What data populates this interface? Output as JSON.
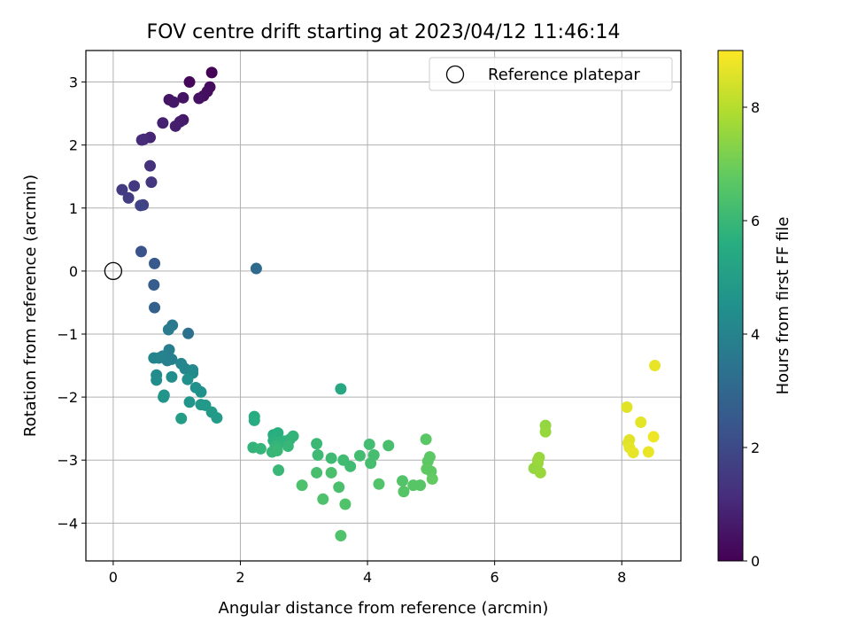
{
  "chart_data": {
    "type": "scatter",
    "title": "FOV centre drift starting at 2023/04/12 11:46:14",
    "xlabel": "Angular distance from reference (arcmin)",
    "ylabel": "Rotation from reference (arcmin)",
    "xlim": [
      -0.43,
      8.93
    ],
    "ylim": [
      -4.6,
      3.5
    ],
    "xticks": [
      "0",
      "2",
      "4",
      "6",
      "8"
    ],
    "yticks": [
      "−4",
      "−3",
      "−2",
      "−1",
      "0",
      "1",
      "2",
      "3"
    ],
    "grid": true,
    "legend": {
      "position": "top-right",
      "entries": [
        "Reference platepar"
      ]
    },
    "colorbar": {
      "label": "Hours from first FF file",
      "range": [
        0,
        9
      ],
      "ticks": [
        "0",
        "2",
        "4",
        "6",
        "8"
      ],
      "colormap": "viridis"
    },
    "reference_point": {
      "x": 0,
      "y": 0
    },
    "series": [
      {
        "points": [
          [
            1.55,
            3.15,
            0.05
          ],
          [
            1.2,
            3.0,
            0.15
          ],
          [
            1.52,
            2.92,
            0.25
          ],
          [
            1.48,
            2.85,
            0.3
          ],
          [
            1.42,
            2.78,
            0.35
          ],
          [
            1.35,
            2.74,
            0.4
          ],
          [
            1.1,
            2.75,
            0.45
          ],
          [
            0.88,
            2.72,
            0.5
          ],
          [
            0.95,
            2.68,
            0.55
          ],
          [
            1.1,
            2.4,
            0.6
          ],
          [
            1.05,
            2.37,
            0.7
          ],
          [
            0.98,
            2.3,
            0.75
          ],
          [
            0.78,
            2.35,
            0.8
          ],
          [
            0.58,
            2.12,
            0.95
          ],
          [
            0.48,
            2.09,
            1.05
          ],
          [
            0.45,
            2.08,
            1.1
          ],
          [
            0.58,
            1.67,
            1.25
          ],
          [
            0.6,
            1.41,
            1.4
          ],
          [
            0.33,
            1.35,
            1.5
          ],
          [
            0.14,
            1.29,
            1.55
          ],
          [
            0.24,
            1.16,
            1.6
          ],
          [
            0.47,
            1.05,
            1.75
          ],
          [
            0.43,
            1.04,
            1.8
          ],
          [
            0.44,
            0.31,
            2.3
          ],
          [
            0.65,
            0.12,
            2.5
          ],
          [
            0.64,
            -0.22,
            2.65
          ],
          [
            0.65,
            -0.58,
            2.75
          ],
          [
            2.25,
            0.04,
            3.1
          ],
          [
            1.18,
            -0.99,
            3.3
          ],
          [
            0.93,
            -0.86,
            3.6
          ],
          [
            0.87,
            -0.93,
            3.7
          ],
          [
            0.88,
            -1.25,
            3.8
          ],
          [
            0.92,
            -1.4,
            3.85
          ],
          [
            0.85,
            -1.42,
            3.9
          ],
          [
            0.78,
            -1.35,
            3.95
          ],
          [
            0.72,
            -1.38,
            4.0
          ],
          [
            0.64,
            -1.38,
            4.05
          ],
          [
            1.07,
            -1.47,
            4.1
          ],
          [
            1.13,
            -1.55,
            4.15
          ],
          [
            1.25,
            -1.57,
            4.2
          ],
          [
            1.25,
            -1.62,
            4.25
          ],
          [
            0.68,
            -1.65,
            4.3
          ],
          [
            0.68,
            -1.73,
            4.35
          ],
          [
            0.92,
            -1.68,
            4.4
          ],
          [
            1.17,
            -1.72,
            4.45
          ],
          [
            1.3,
            -1.85,
            4.5
          ],
          [
            1.38,
            -1.92,
            4.55
          ],
          [
            0.8,
            -1.97,
            4.6
          ],
          [
            0.79,
            -2.0,
            4.65
          ],
          [
            1.2,
            -2.08,
            4.7
          ],
          [
            1.38,
            -2.12,
            4.75
          ],
          [
            1.45,
            -2.13,
            4.8
          ],
          [
            1.55,
            -2.24,
            4.85
          ],
          [
            1.63,
            -2.33,
            4.9
          ],
          [
            1.07,
            -2.34,
            4.95
          ],
          [
            3.58,
            -1.87,
            5.4
          ],
          [
            2.22,
            -2.31,
            5.5
          ],
          [
            2.22,
            -2.37,
            5.55
          ],
          [
            2.52,
            -2.6,
            5.6
          ],
          [
            2.59,
            -2.57,
            5.65
          ],
          [
            2.52,
            -2.69,
            5.7
          ],
          [
            2.62,
            -2.72,
            5.75
          ],
          [
            2.7,
            -2.7,
            5.8
          ],
          [
            2.78,
            -2.67,
            5.8
          ],
          [
            2.83,
            -2.62,
            5.85
          ],
          [
            2.2,
            -2.8,
            5.85
          ],
          [
            2.32,
            -2.82,
            5.9
          ],
          [
            2.55,
            -2.78,
            5.9
          ],
          [
            2.75,
            -2.78,
            5.95
          ],
          [
            2.5,
            -2.87,
            5.95
          ],
          [
            2.58,
            -2.85,
            6.0
          ],
          [
            2.6,
            -3.16,
            6.0
          ],
          [
            3.2,
            -2.74,
            6.05
          ],
          [
            3.22,
            -2.92,
            6.1
          ],
          [
            3.43,
            -2.97,
            6.1
          ],
          [
            3.62,
            -3.0,
            6.15
          ],
          [
            3.73,
            -3.1,
            6.15
          ],
          [
            3.88,
            -2.93,
            6.2
          ],
          [
            4.03,
            -2.75,
            6.2
          ],
          [
            4.05,
            -3.05,
            6.25
          ],
          [
            4.1,
            -2.92,
            6.25
          ],
          [
            4.33,
            -2.77,
            6.3
          ],
          [
            3.2,
            -3.2,
            6.3
          ],
          [
            3.43,
            -3.2,
            6.35
          ],
          [
            3.55,
            -3.43,
            6.35
          ],
          [
            2.97,
            -3.4,
            6.4
          ],
          [
            3.3,
            -3.62,
            6.4
          ],
          [
            3.65,
            -3.7,
            6.45
          ],
          [
            3.58,
            -4.2,
            6.45
          ],
          [
            4.18,
            -3.38,
            6.5
          ],
          [
            4.55,
            -3.33,
            6.5
          ],
          [
            4.57,
            -3.5,
            6.55
          ],
          [
            4.72,
            -3.4,
            6.6
          ],
          [
            4.83,
            -3.4,
            6.6
          ],
          [
            4.92,
            -2.67,
            6.65
          ],
          [
            4.98,
            -2.95,
            6.7
          ],
          [
            4.95,
            -3.02,
            6.7
          ],
          [
            4.93,
            -3.14,
            6.75
          ],
          [
            5.0,
            -3.18,
            6.75
          ],
          [
            5.02,
            -3.3,
            6.8
          ],
          [
            6.8,
            -2.45,
            7.5
          ],
          [
            6.8,
            -2.55,
            7.55
          ],
          [
            6.62,
            -3.13,
            7.5
          ],
          [
            6.68,
            -3.05,
            7.55
          ],
          [
            6.7,
            -2.96,
            7.55
          ],
          [
            6.72,
            -3.2,
            7.6
          ],
          [
            6.68,
            -3.0,
            7.6
          ],
          [
            8.52,
            -1.5,
            8.7
          ],
          [
            8.08,
            -2.16,
            8.6
          ],
          [
            8.3,
            -2.4,
            8.65
          ],
          [
            8.12,
            -2.68,
            8.6
          ],
          [
            8.1,
            -2.73,
            8.6
          ],
          [
            8.12,
            -2.8,
            8.65
          ],
          [
            8.18,
            -2.88,
            8.7
          ],
          [
            8.42,
            -2.87,
            8.75
          ],
          [
            8.5,
            -2.63,
            8.8
          ]
        ]
      }
    ]
  }
}
